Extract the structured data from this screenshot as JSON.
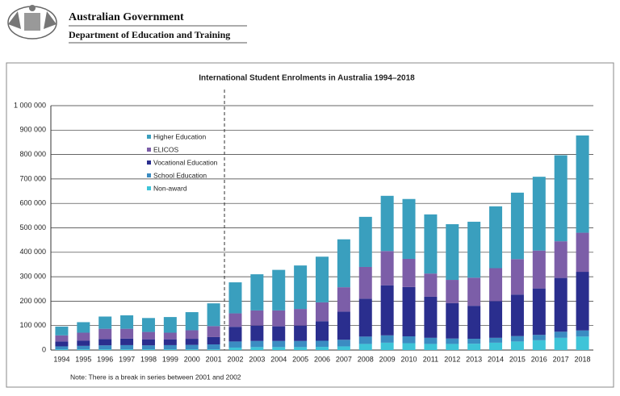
{
  "header": {
    "title": "Australian Government",
    "department": "Department of Education and Training"
  },
  "chart_data": {
    "type": "stacked_bar",
    "title": "International Student Enrolments in Australia 1994–2018",
    "categories": [
      "1994",
      "1995",
      "1996",
      "1997",
      "1998",
      "1999",
      "2000",
      "2001",
      "2002",
      "2003",
      "2004",
      "2005",
      "2006",
      "2007",
      "2008",
      "2009",
      "2010",
      "2011",
      "2012",
      "2013",
      "2014",
      "2015",
      "2016",
      "2017",
      "2018"
    ],
    "series": [
      {
        "name": "Non-award",
        "color": "#3ec4d8",
        "values": [
          3000,
          3000,
          3000,
          3000,
          3000,
          3000,
          3000,
          3000,
          10000,
          12000,
          12000,
          12000,
          13000,
          15000,
          25000,
          30000,
          28000,
          25000,
          25000,
          26000,
          30000,
          35000,
          40000,
          50000,
          55000
        ]
      },
      {
        "name": "School Education",
        "color": "#3b8cc2",
        "values": [
          12000,
          14000,
          16000,
          17000,
          16000,
          17000,
          18000,
          20000,
          25000,
          25000,
          25000,
          25000,
          25000,
          27000,
          30000,
          30000,
          28000,
          25000,
          22000,
          20000,
          20000,
          22000,
          22000,
          25000,
          25000
        ]
      },
      {
        "name": "Vocational Education",
        "color": "#2a2e8e",
        "values": [
          20000,
          22000,
          26000,
          27000,
          25000,
          24000,
          25000,
          30000,
          60000,
          63000,
          60000,
          63000,
          80000,
          115000,
          155000,
          205000,
          202000,
          168000,
          145000,
          135000,
          150000,
          170000,
          190000,
          220000,
          240000
        ]
      },
      {
        "name": "ELICOS",
        "color": "#7c5ea8",
        "values": [
          25000,
          32000,
          42000,
          40000,
          30000,
          27000,
          35000,
          45000,
          55000,
          62000,
          65000,
          68000,
          77000,
          100000,
          130000,
          140000,
          115000,
          95000,
          95000,
          115000,
          135000,
          145000,
          155000,
          150000,
          160000
        ]
      },
      {
        "name": "Higher Education",
        "color": "#3a9fbe",
        "values": [
          36000,
          43000,
          50000,
          55000,
          57000,
          64000,
          74000,
          93000,
          127000,
          148000,
          166000,
          178000,
          187000,
          196000,
          205000,
          226000,
          245000,
          242000,
          228000,
          229000,
          253000,
          272000,
          302000,
          352000,
          398000
        ]
      }
    ],
    "ylim": [
      0,
      1000000
    ],
    "yticks": [
      {
        "value": 0,
        "label": "0"
      },
      {
        "value": 100000,
        "label": "100 000"
      },
      {
        "value": 200000,
        "label": "200 000"
      },
      {
        "value": 300000,
        "label": "300 000"
      },
      {
        "value": 400000,
        "label": "400 000"
      },
      {
        "value": 500000,
        "label": "500 000"
      },
      {
        "value": 600000,
        "label": "600 000"
      },
      {
        "value": 700000,
        "label": "700 000"
      },
      {
        "value": 800000,
        "label": "800 000"
      },
      {
        "value": 900000,
        "label": "900 000"
      },
      {
        "value": 1000000,
        "label": "1 000 000"
      }
    ],
    "grid": true,
    "note": "Note: There is a break in series between 2001 and 2002"
  }
}
